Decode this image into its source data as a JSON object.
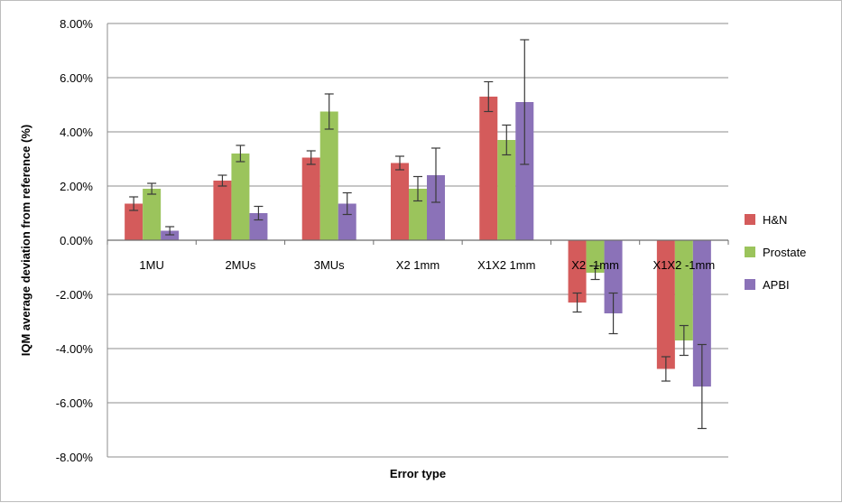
{
  "chart_data": {
    "type": "bar",
    "title": "",
    "xlabel": "Error type",
    "ylabel": "IQM average deviation from reference (%)",
    "ylim": [
      -8,
      8
    ],
    "ytick_step": 2,
    "ytick_labels": [
      "-8.00%",
      "-6.00%",
      "-4.00%",
      "-2.00%",
      "0.00%",
      "2.00%",
      "4.00%",
      "6.00%",
      "8.00%"
    ],
    "grid": true,
    "legend_position": "right",
    "categories": [
      "1MU",
      "2MUs",
      "3MUs",
      "X2 1mm",
      "X1X2 1mm",
      "X2 -1mm",
      "X1X2 -1mm"
    ],
    "series": [
      {
        "name": "H&N",
        "color": "#d45b5b",
        "values": [
          1.35,
          2.2,
          3.05,
          2.85,
          5.3,
          -2.3,
          -4.75
        ],
        "error": [
          0.25,
          0.2,
          0.25,
          0.25,
          0.55,
          0.35,
          0.45
        ]
      },
      {
        "name": "Prostate",
        "color": "#9bc45c",
        "values": [
          1.9,
          3.2,
          4.75,
          1.9,
          3.7,
          -1.2,
          -3.7
        ],
        "error": [
          0.2,
          0.3,
          0.65,
          0.45,
          0.55,
          0.25,
          0.55
        ]
      },
      {
        "name": "APBI",
        "color": "#8b72b8",
        "values": [
          0.35,
          1.0,
          1.35,
          2.4,
          5.1,
          -2.7,
          -5.4
        ],
        "error": [
          0.15,
          0.25,
          0.4,
          1.0,
          2.3,
          0.75,
          1.55
        ]
      }
    ]
  }
}
